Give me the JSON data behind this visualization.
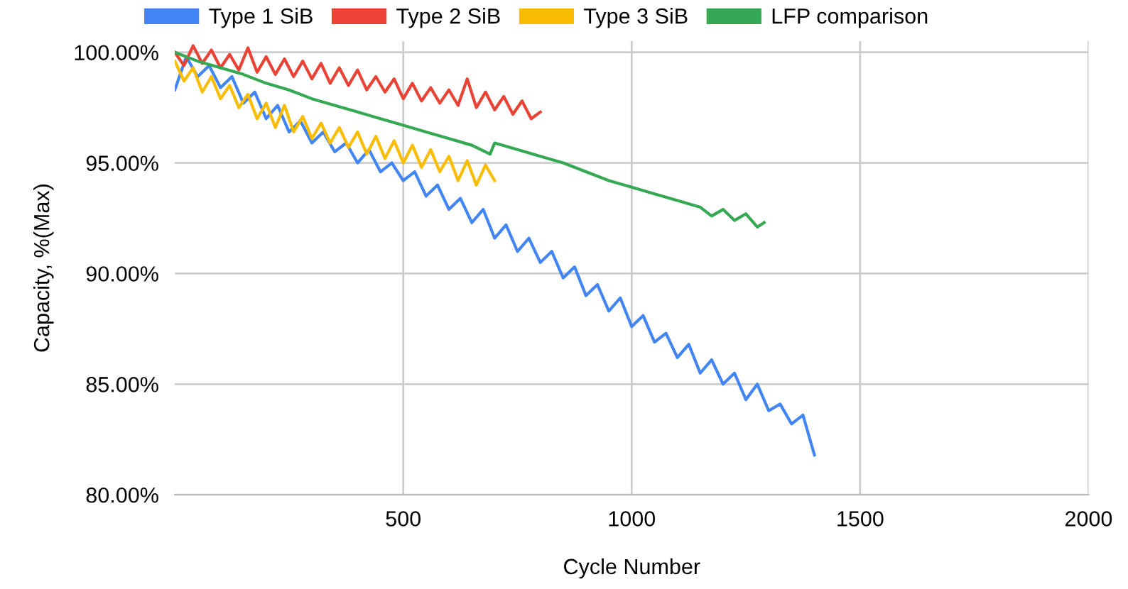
{
  "chart_data": {
    "type": "line",
    "xlabel": "Cycle Number",
    "ylabel": "Capacity, %(Max)",
    "xlim": [
      0,
      2000
    ],
    "xticks": [
      500,
      1000,
      1500,
      2000
    ],
    "ylim": [
      80,
      100.5
    ],
    "yticks": [
      {
        "value": 80,
        "label": "80.00%"
      },
      {
        "value": 85,
        "label": "85.00%"
      },
      {
        "value": 90,
        "label": "90.00%"
      },
      {
        "value": 95,
        "label": "95.00%"
      },
      {
        "value": 100,
        "label": "100.00%"
      }
    ],
    "grid": true,
    "legend": "top",
    "marker": "none",
    "line_style": "solid",
    "series": [
      {
        "name": "Type 1 SiB",
        "color": "#4285f4",
        "x": [
          0,
          25,
          50,
          75,
          100,
          125,
          150,
          175,
          200,
          225,
          250,
          275,
          300,
          325,
          350,
          375,
          400,
          425,
          450,
          475,
          500,
          525,
          550,
          575,
          600,
          625,
          650,
          675,
          700,
          725,
          750,
          775,
          800,
          825,
          850,
          875,
          900,
          925,
          950,
          975,
          1000,
          1025,
          1050,
          1075,
          1100,
          1125,
          1150,
          1175,
          1200,
          1225,
          1250,
          1275,
          1300,
          1325,
          1350,
          1375,
          1400
        ],
        "values": [
          98.3,
          99.8,
          98.9,
          99.4,
          98.4,
          98.9,
          97.7,
          98.2,
          97.0,
          97.6,
          96.4,
          96.9,
          95.9,
          96.4,
          95.5,
          95.9,
          95.0,
          95.6,
          94.6,
          95.0,
          94.2,
          94.6,
          93.5,
          94.0,
          92.9,
          93.4,
          92.3,
          92.9,
          91.6,
          92.2,
          91.0,
          91.6,
          90.5,
          91.0,
          89.8,
          90.3,
          89.0,
          89.5,
          88.3,
          88.9,
          87.6,
          88.1,
          86.9,
          87.3,
          86.2,
          86.8,
          85.5,
          86.1,
          85.0,
          85.5,
          84.3,
          85.0,
          83.8,
          84.1,
          83.2,
          83.6,
          81.8
        ]
      },
      {
        "name": "Type 2 SiB",
        "color": "#ea4335",
        "x": [
          0,
          20,
          40,
          60,
          80,
          100,
          120,
          140,
          160,
          180,
          200,
          220,
          240,
          260,
          280,
          300,
          320,
          340,
          360,
          380,
          400,
          420,
          440,
          460,
          480,
          500,
          520,
          540,
          560,
          580,
          600,
          620,
          640,
          660,
          680,
          700,
          720,
          740,
          760,
          780,
          800
        ],
        "values": [
          100.0,
          99.4,
          100.3,
          99.5,
          100.1,
          99.3,
          99.9,
          99.2,
          100.2,
          99.1,
          99.8,
          99.0,
          99.7,
          98.9,
          99.6,
          98.8,
          99.5,
          98.6,
          99.3,
          98.5,
          99.2,
          98.3,
          98.9,
          98.2,
          98.8,
          97.9,
          98.6,
          97.8,
          98.4,
          97.7,
          98.3,
          97.6,
          98.8,
          97.5,
          98.2,
          97.4,
          98.0,
          97.2,
          97.8,
          97.0,
          97.3
        ]
      },
      {
        "name": "Type 3 SiB",
        "color": "#fbbc04",
        "x": [
          0,
          20,
          40,
          60,
          80,
          100,
          120,
          140,
          160,
          180,
          200,
          220,
          240,
          260,
          280,
          300,
          320,
          340,
          360,
          380,
          400,
          420,
          440,
          460,
          480,
          500,
          520,
          540,
          560,
          580,
          600,
          620,
          640,
          660,
          680,
          700
        ],
        "values": [
          99.6,
          98.7,
          99.3,
          98.2,
          98.9,
          97.9,
          98.5,
          97.5,
          98.1,
          97.0,
          97.7,
          96.6,
          97.6,
          96.4,
          97.1,
          96.1,
          96.8,
          95.9,
          96.6,
          95.7,
          96.4,
          95.4,
          96.2,
          95.2,
          96.0,
          95.0,
          95.8,
          94.8,
          95.6,
          94.6,
          95.3,
          94.2,
          95.1,
          94.0,
          94.9,
          94.2
        ]
      },
      {
        "name": "LFP comparison",
        "color": "#34a853",
        "x": [
          0,
          50,
          100,
          150,
          200,
          250,
          300,
          350,
          400,
          450,
          500,
          550,
          600,
          650,
          690,
          700,
          750,
          800,
          850,
          900,
          950,
          1000,
          1050,
          1100,
          1150,
          1175,
          1200,
          1225,
          1250,
          1275,
          1290
        ],
        "values": [
          100.0,
          99.6,
          99.3,
          99.0,
          98.6,
          98.3,
          97.9,
          97.6,
          97.3,
          97.0,
          96.7,
          96.4,
          96.1,
          95.8,
          95.4,
          95.9,
          95.6,
          95.3,
          95.0,
          94.6,
          94.2,
          93.9,
          93.6,
          93.3,
          93.0,
          92.6,
          92.9,
          92.4,
          92.7,
          92.1,
          92.3
        ]
      }
    ]
  }
}
